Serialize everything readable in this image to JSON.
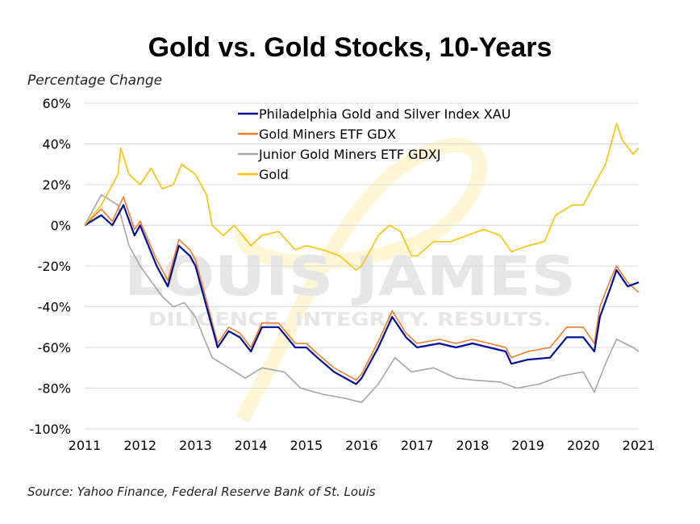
{
  "chart_data": {
    "type": "line",
    "title": "Gold vs. Gold Stocks, 10-Years",
    "ylabel": "Percentage Change",
    "xlabel": "",
    "source": "Source: Yahoo Finance, Federal Reserve Bank of St. Louis",
    "xlim": [
      2011,
      2021
    ],
    "ylim": [
      -100,
      60
    ],
    "x_ticks": [
      "2011",
      "2012",
      "2013",
      "2014",
      "2015",
      "2016",
      "2017",
      "2018",
      "2019",
      "2020",
      "2021"
    ],
    "y_ticks": [
      "60%",
      "40%",
      "20%",
      "0%",
      "-20%",
      "-40%",
      "-60%",
      "-80%",
      "-100%"
    ],
    "grid": "horizontal",
    "legend_placement": "top-center",
    "watermark": {
      "line1": "LOUIS JAMES",
      "line2": "DILIGENCE. INTEGRITY. RESULTS."
    },
    "series": [
      {
        "name": "Philadelphia Gold and Silver Index XAU",
        "color": "#00109A",
        "x": [
          2011,
          2011.3,
          2011.5,
          2011.7,
          2011.9,
          2012,
          2012.3,
          2012.5,
          2012.7,
          2012.9,
          2013,
          2013.2,
          2013.4,
          2013.6,
          2013.8,
          2014,
          2014.2,
          2014.5,
          2014.8,
          2015,
          2015.2,
          2015.5,
          2015.9,
          2016,
          2016.3,
          2016.55,
          2016.8,
          2017,
          2017.4,
          2017.7,
          2018,
          2018.3,
          2018.6,
          2018.7,
          2019,
          2019.4,
          2019.7,
          2020,
          2020.2,
          2020.3,
          2020.5,
          2020.6,
          2020.8,
          2021
        ],
        "y": [
          0,
          5,
          0,
          10,
          -5,
          0,
          -20,
          -30,
          -10,
          -15,
          -20,
          -40,
          -60,
          -52,
          -55,
          -62,
          -50,
          -50,
          -60,
          -60,
          -65,
          -72,
          -78,
          -75,
          -60,
          -45,
          -55,
          -60,
          -58,
          -60,
          -58,
          -60,
          -62,
          -68,
          -66,
          -65,
          -55,
          -55,
          -62,
          -45,
          -30,
          -22,
          -30,
          -28
        ]
      },
      {
        "name": "Gold Miners ETF GDX",
        "color": "#F07C2A",
        "x": [
          2011,
          2011.3,
          2011.5,
          2011.7,
          2011.9,
          2012,
          2012.3,
          2012.5,
          2012.7,
          2012.9,
          2013,
          2013.2,
          2013.4,
          2013.6,
          2013.8,
          2014,
          2014.2,
          2014.5,
          2014.8,
          2015,
          2015.2,
          2015.5,
          2015.9,
          2016,
          2016.3,
          2016.55,
          2016.8,
          2017,
          2017.4,
          2017.7,
          2018,
          2018.3,
          2018.6,
          2018.7,
          2019,
          2019.4,
          2019.7,
          2020,
          2020.2,
          2020.3,
          2020.5,
          2020.6,
          2020.8,
          2021
        ],
        "y": [
          0,
          8,
          2,
          14,
          -2,
          2,
          -17,
          -27,
          -7,
          -12,
          -17,
          -37,
          -58,
          -50,
          -53,
          -60,
          -48,
          -48,
          -58,
          -58,
          -63,
          -70,
          -76,
          -73,
          -57,
          -42,
          -53,
          -58,
          -56,
          -58,
          -56,
          -58,
          -60,
          -65,
          -62,
          -60,
          -50,
          -50,
          -58,
          -40,
          -26,
          -20,
          -28,
          -33
        ]
      },
      {
        "name": "Junior Gold Miners ETF GDXJ",
        "color": "#A6A6A6",
        "x": [
          2011,
          2011.3,
          2011.6,
          2011.8,
          2012,
          2012.4,
          2012.6,
          2012.8,
          2013,
          2013.3,
          2013.6,
          2013.9,
          2014.2,
          2014.6,
          2014.9,
          2015.3,
          2015.7,
          2016,
          2016.3,
          2016.6,
          2016.9,
          2017.3,
          2017.7,
          2018,
          2018.5,
          2018.8,
          2019.2,
          2019.6,
          2020,
          2020.2,
          2020.4,
          2020.6,
          2020.9,
          2021
        ],
        "y": [
          0,
          15,
          10,
          -10,
          -20,
          -35,
          -40,
          -38,
          -45,
          -65,
          -70,
          -75,
          -70,
          -72,
          -80,
          -83,
          -85,
          -87,
          -78,
          -65,
          -72,
          -70,
          -75,
          -76,
          -77,
          -80,
          -78,
          -74,
          -72,
          -82,
          -68,
          -56,
          -60,
          -62
        ]
      },
      {
        "name": "Gold",
        "color": "#FFC000",
        "x": [
          2011,
          2011.3,
          2011.6,
          2011.65,
          2011.8,
          2012,
          2012.2,
          2012.4,
          2012.6,
          2012.75,
          2013,
          2013.2,
          2013.3,
          2013.5,
          2013.7,
          2014,
          2014.2,
          2014.5,
          2014.8,
          2015,
          2015.3,
          2015.6,
          2015.9,
          2016,
          2016.3,
          2016.5,
          2016.7,
          2016.9,
          2017,
          2017.3,
          2017.6,
          2017.9,
          2018.2,
          2018.5,
          2018.7,
          2019,
          2019.3,
          2019.5,
          2019.8,
          2020,
          2020.2,
          2020.4,
          2020.6,
          2020.7,
          2020.9,
          2021
        ],
        "y": [
          0,
          10,
          25,
          38,
          25,
          20,
          28,
          18,
          20,
          30,
          25,
          15,
          0,
          -5,
          0,
          -10,
          -5,
          -3,
          -12,
          -10,
          -12,
          -15,
          -22,
          -20,
          -5,
          0,
          -3,
          -15,
          -15,
          -8,
          -8,
          -5,
          -2,
          -5,
          -13,
          -10,
          -8,
          5,
          10,
          10,
          20,
          30,
          50,
          42,
          35,
          38
        ]
      }
    ]
  }
}
